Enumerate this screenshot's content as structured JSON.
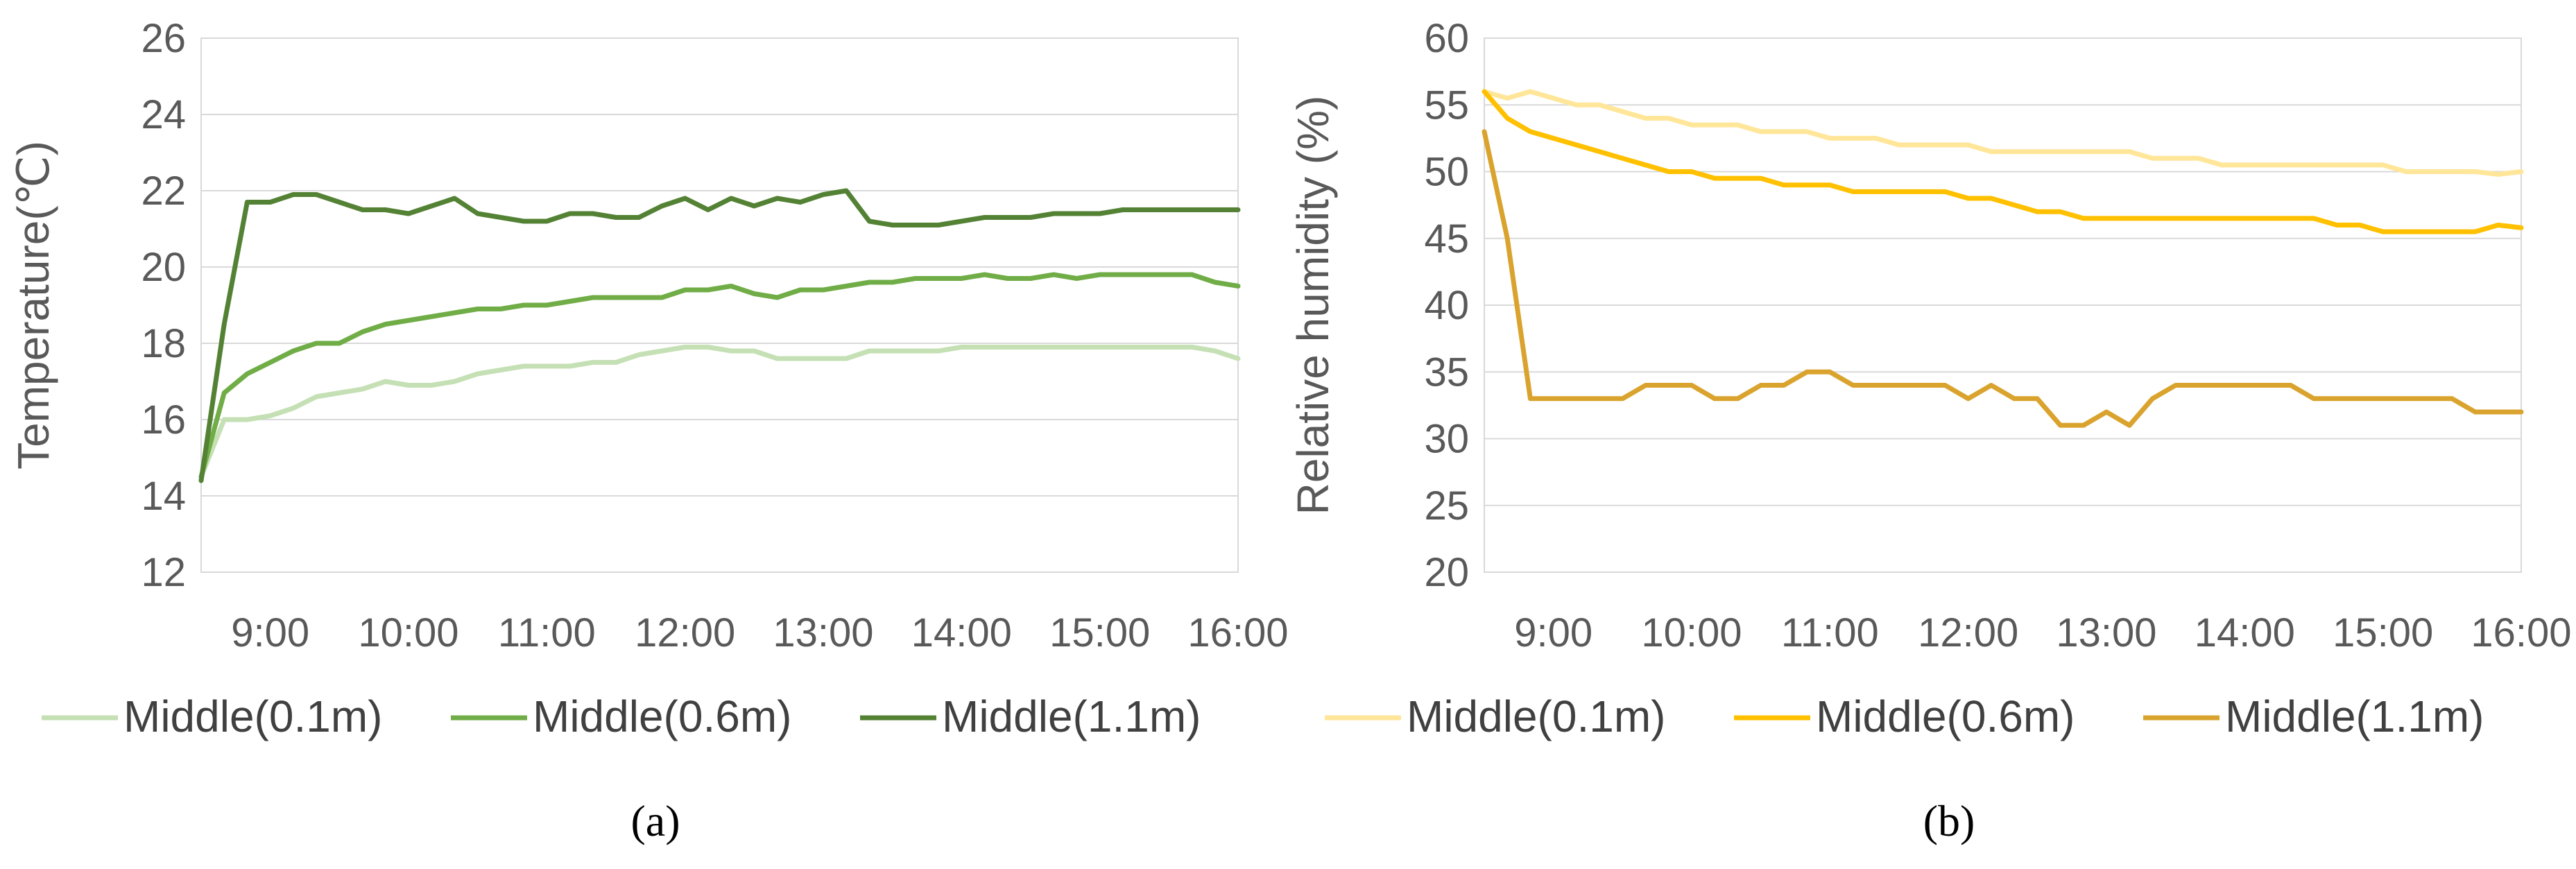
{
  "chart_data": [
    {
      "type": "line",
      "panel_label": "(a)",
      "ylabel": "Temperature(℃)",
      "xlabel": "",
      "ylim": [
        12,
        26
      ],
      "y_ticks": [
        "12",
        "14",
        "16",
        "18",
        "20",
        "22",
        "24",
        "26"
      ],
      "x_ticks": [
        "9:00",
        "10:00",
        "11:00",
        "12:00",
        "13:00",
        "14:00",
        "15:00",
        "16:00"
      ],
      "xlim": [
        "8:30",
        "16:00"
      ],
      "grid": "horizontal",
      "legend_position": "bottom",
      "series": [
        {
          "name": "Middle(0.1m)",
          "color": "#c5e0b4",
          "x": [
            "8:30",
            "8:40",
            "8:50",
            "9:00",
            "9:10",
            "9:20",
            "9:30",
            "9:40",
            "9:50",
            "10:00",
            "10:10",
            "10:20",
            "10:30",
            "10:40",
            "10:50",
            "11:00",
            "11:10",
            "11:20",
            "11:30",
            "11:40",
            "11:50",
            "12:00",
            "12:10",
            "12:20",
            "12:30",
            "12:40",
            "12:50",
            "13:00",
            "13:10",
            "13:20",
            "13:30",
            "13:40",
            "13:50",
            "14:00",
            "14:10",
            "14:20",
            "14:30",
            "14:40",
            "14:50",
            "15:00",
            "15:10",
            "15:20",
            "15:30",
            "15:40",
            "15:50",
            "16:00"
          ],
          "values": [
            14.5,
            16.0,
            16.0,
            16.1,
            16.3,
            16.6,
            16.7,
            16.8,
            17.0,
            16.9,
            16.9,
            17.0,
            17.2,
            17.3,
            17.4,
            17.4,
            17.4,
            17.5,
            17.5,
            17.7,
            17.8,
            17.9,
            17.9,
            17.8,
            17.8,
            17.6,
            17.6,
            17.6,
            17.6,
            17.8,
            17.8,
            17.8,
            17.8,
            17.9,
            17.9,
            17.9,
            17.9,
            17.9,
            17.9,
            17.9,
            17.9,
            17.9,
            17.9,
            17.9,
            17.8,
            17.6
          ]
        },
        {
          "name": "Middle(0.6m)",
          "color": "#70ad47",
          "x": [
            "8:30",
            "8:40",
            "8:50",
            "9:00",
            "9:10",
            "9:20",
            "9:30",
            "9:40",
            "9:50",
            "10:00",
            "10:10",
            "10:20",
            "10:30",
            "10:40",
            "10:50",
            "11:00",
            "11:10",
            "11:20",
            "11:30",
            "11:40",
            "11:50",
            "12:00",
            "12:10",
            "12:20",
            "12:30",
            "12:40",
            "12:50",
            "13:00",
            "13:10",
            "13:20",
            "13:30",
            "13:40",
            "13:50",
            "14:00",
            "14:10",
            "14:20",
            "14:30",
            "14:40",
            "14:50",
            "15:00",
            "15:10",
            "15:20",
            "15:30",
            "15:40",
            "15:50",
            "16:00"
          ],
          "values": [
            14.5,
            16.7,
            17.2,
            17.5,
            17.8,
            18.0,
            18.0,
            18.3,
            18.5,
            18.6,
            18.7,
            18.8,
            18.9,
            18.9,
            19.0,
            19.0,
            19.1,
            19.2,
            19.2,
            19.2,
            19.2,
            19.4,
            19.4,
            19.5,
            19.3,
            19.2,
            19.4,
            19.4,
            19.5,
            19.6,
            19.6,
            19.7,
            19.7,
            19.7,
            19.8,
            19.7,
            19.7,
            19.8,
            19.7,
            19.8,
            19.8,
            19.8,
            19.8,
            19.8,
            19.6,
            19.5
          ]
        },
        {
          "name": "Middle(1.1m)",
          "color": "#548235",
          "x": [
            "8:30",
            "8:40",
            "8:50",
            "9:00",
            "9:10",
            "9:20",
            "9:30",
            "9:40",
            "9:50",
            "10:00",
            "10:10",
            "10:20",
            "10:30",
            "10:40",
            "10:50",
            "11:00",
            "11:10",
            "11:20",
            "11:30",
            "11:40",
            "11:50",
            "12:00",
            "12:10",
            "12:20",
            "12:30",
            "12:40",
            "12:50",
            "13:00",
            "13:10",
            "13:20",
            "13:30",
            "13:40",
            "13:50",
            "14:00",
            "14:10",
            "14:20",
            "14:30",
            "14:40",
            "14:50",
            "15:00",
            "15:10",
            "15:20",
            "15:30",
            "15:40",
            "15:50",
            "16:00"
          ],
          "values": [
            14.4,
            18.5,
            21.7,
            21.7,
            21.9,
            21.9,
            21.7,
            21.5,
            21.5,
            21.4,
            21.6,
            21.8,
            21.4,
            21.3,
            21.2,
            21.2,
            21.4,
            21.4,
            21.3,
            21.3,
            21.6,
            21.8,
            21.5,
            21.8,
            21.6,
            21.8,
            21.7,
            21.9,
            22.0,
            21.2,
            21.1,
            21.1,
            21.1,
            21.2,
            21.3,
            21.3,
            21.3,
            21.4,
            21.4,
            21.4,
            21.5,
            21.5,
            21.5,
            21.5,
            21.5,
            21.5
          ]
        }
      ]
    },
    {
      "type": "line",
      "panel_label": "(b)",
      "ylabel": "Relative humidity (%)",
      "xlabel": "",
      "ylim": [
        20,
        60
      ],
      "y_ticks": [
        "20",
        "25",
        "30",
        "35",
        "40",
        "45",
        "50",
        "55",
        "60"
      ],
      "x_ticks": [
        "9:00",
        "10:00",
        "11:00",
        "12:00",
        "13:00",
        "14:00",
        "15:00",
        "16:00"
      ],
      "xlim": [
        "8:30",
        "16:00"
      ],
      "grid": "horizontal",
      "legend_position": "bottom",
      "series": [
        {
          "name": "Middle(0.1m)",
          "color": "#ffe699",
          "x": [
            "8:30",
            "8:40",
            "8:50",
            "9:00",
            "9:10",
            "9:20",
            "9:30",
            "9:40",
            "9:50",
            "10:00",
            "10:10",
            "10:20",
            "10:30",
            "10:40",
            "10:50",
            "11:00",
            "11:10",
            "11:20",
            "11:30",
            "11:40",
            "11:50",
            "12:00",
            "12:10",
            "12:20",
            "12:30",
            "12:40",
            "12:50",
            "13:00",
            "13:10",
            "13:20",
            "13:30",
            "13:40",
            "13:50",
            "14:00",
            "14:10",
            "14:20",
            "14:30",
            "14:40",
            "14:50",
            "15:00",
            "15:10",
            "15:20",
            "15:30",
            "15:40",
            "15:50",
            "16:00"
          ],
          "values": [
            56.0,
            55.5,
            56.0,
            55.5,
            55.0,
            55.0,
            54.5,
            54.0,
            54.0,
            53.5,
            53.5,
            53.5,
            53.0,
            53.0,
            53.0,
            52.5,
            52.5,
            52.5,
            52.0,
            52.0,
            52.0,
            52.0,
            51.5,
            51.5,
            51.5,
            51.5,
            51.5,
            51.5,
            51.5,
            51.0,
            51.0,
            51.0,
            50.5,
            50.5,
            50.5,
            50.5,
            50.5,
            50.5,
            50.5,
            50.5,
            50.0,
            50.0,
            50.0,
            50.0,
            49.8,
            50.0
          ]
        },
        {
          "name": "Middle(0.6m)",
          "color": "#ffc000",
          "x": [
            "8:30",
            "8:40",
            "8:50",
            "9:00",
            "9:10",
            "9:20",
            "9:30",
            "9:40",
            "9:50",
            "10:00",
            "10:10",
            "10:20",
            "10:30",
            "10:40",
            "10:50",
            "11:00",
            "11:10",
            "11:20",
            "11:30",
            "11:40",
            "11:50",
            "12:00",
            "12:10",
            "12:20",
            "12:30",
            "12:40",
            "12:50",
            "13:00",
            "13:10",
            "13:20",
            "13:30",
            "13:40",
            "13:50",
            "14:00",
            "14:10",
            "14:20",
            "14:30",
            "14:40",
            "14:50",
            "15:00",
            "15:10",
            "15:20",
            "15:30",
            "15:40",
            "15:50",
            "16:00"
          ],
          "values": [
            56.0,
            54.0,
            53.0,
            52.5,
            52.0,
            51.5,
            51.0,
            50.5,
            50.0,
            50.0,
            49.5,
            49.5,
            49.5,
            49.0,
            49.0,
            49.0,
            48.5,
            48.5,
            48.5,
            48.5,
            48.5,
            48.0,
            48.0,
            47.5,
            47.0,
            47.0,
            46.5,
            46.5,
            46.5,
            46.5,
            46.5,
            46.5,
            46.5,
            46.5,
            46.5,
            46.5,
            46.5,
            46.0,
            46.0,
            45.5,
            45.5,
            45.5,
            45.5,
            45.5,
            46.0,
            45.8
          ]
        },
        {
          "name": "Middle(1.1m)",
          "color": "#d9a32e",
          "x": [
            "8:30",
            "8:40",
            "8:50",
            "9:00",
            "9:10",
            "9:20",
            "9:30",
            "9:40",
            "9:50",
            "10:00",
            "10:10",
            "10:20",
            "10:30",
            "10:40",
            "10:50",
            "11:00",
            "11:10",
            "11:20",
            "11:30",
            "11:40",
            "11:50",
            "12:00",
            "12:10",
            "12:20",
            "12:30",
            "12:40",
            "12:50",
            "13:00",
            "13:10",
            "13:20",
            "13:30",
            "13:40",
            "13:50",
            "14:00",
            "14:10",
            "14:20",
            "14:30",
            "14:40",
            "14:50",
            "15:00",
            "15:10",
            "15:20",
            "15:30",
            "15:40",
            "15:50",
            "16:00"
          ],
          "values": [
            53.0,
            45.0,
            33.0,
            33.0,
            33.0,
            33.0,
            33.0,
            34.0,
            34.0,
            34.0,
            33.0,
            33.0,
            34.0,
            34.0,
            35.0,
            35.0,
            34.0,
            34.0,
            34.0,
            34.0,
            34.0,
            33.0,
            34.0,
            33.0,
            33.0,
            31.0,
            31.0,
            32.0,
            31.0,
            33.0,
            34.0,
            34.0,
            34.0,
            34.0,
            34.0,
            34.0,
            33.0,
            33.0,
            33.0,
            33.0,
            33.0,
            33.0,
            33.0,
            32.0,
            32.0,
            32.0
          ]
        }
      ]
    }
  ]
}
